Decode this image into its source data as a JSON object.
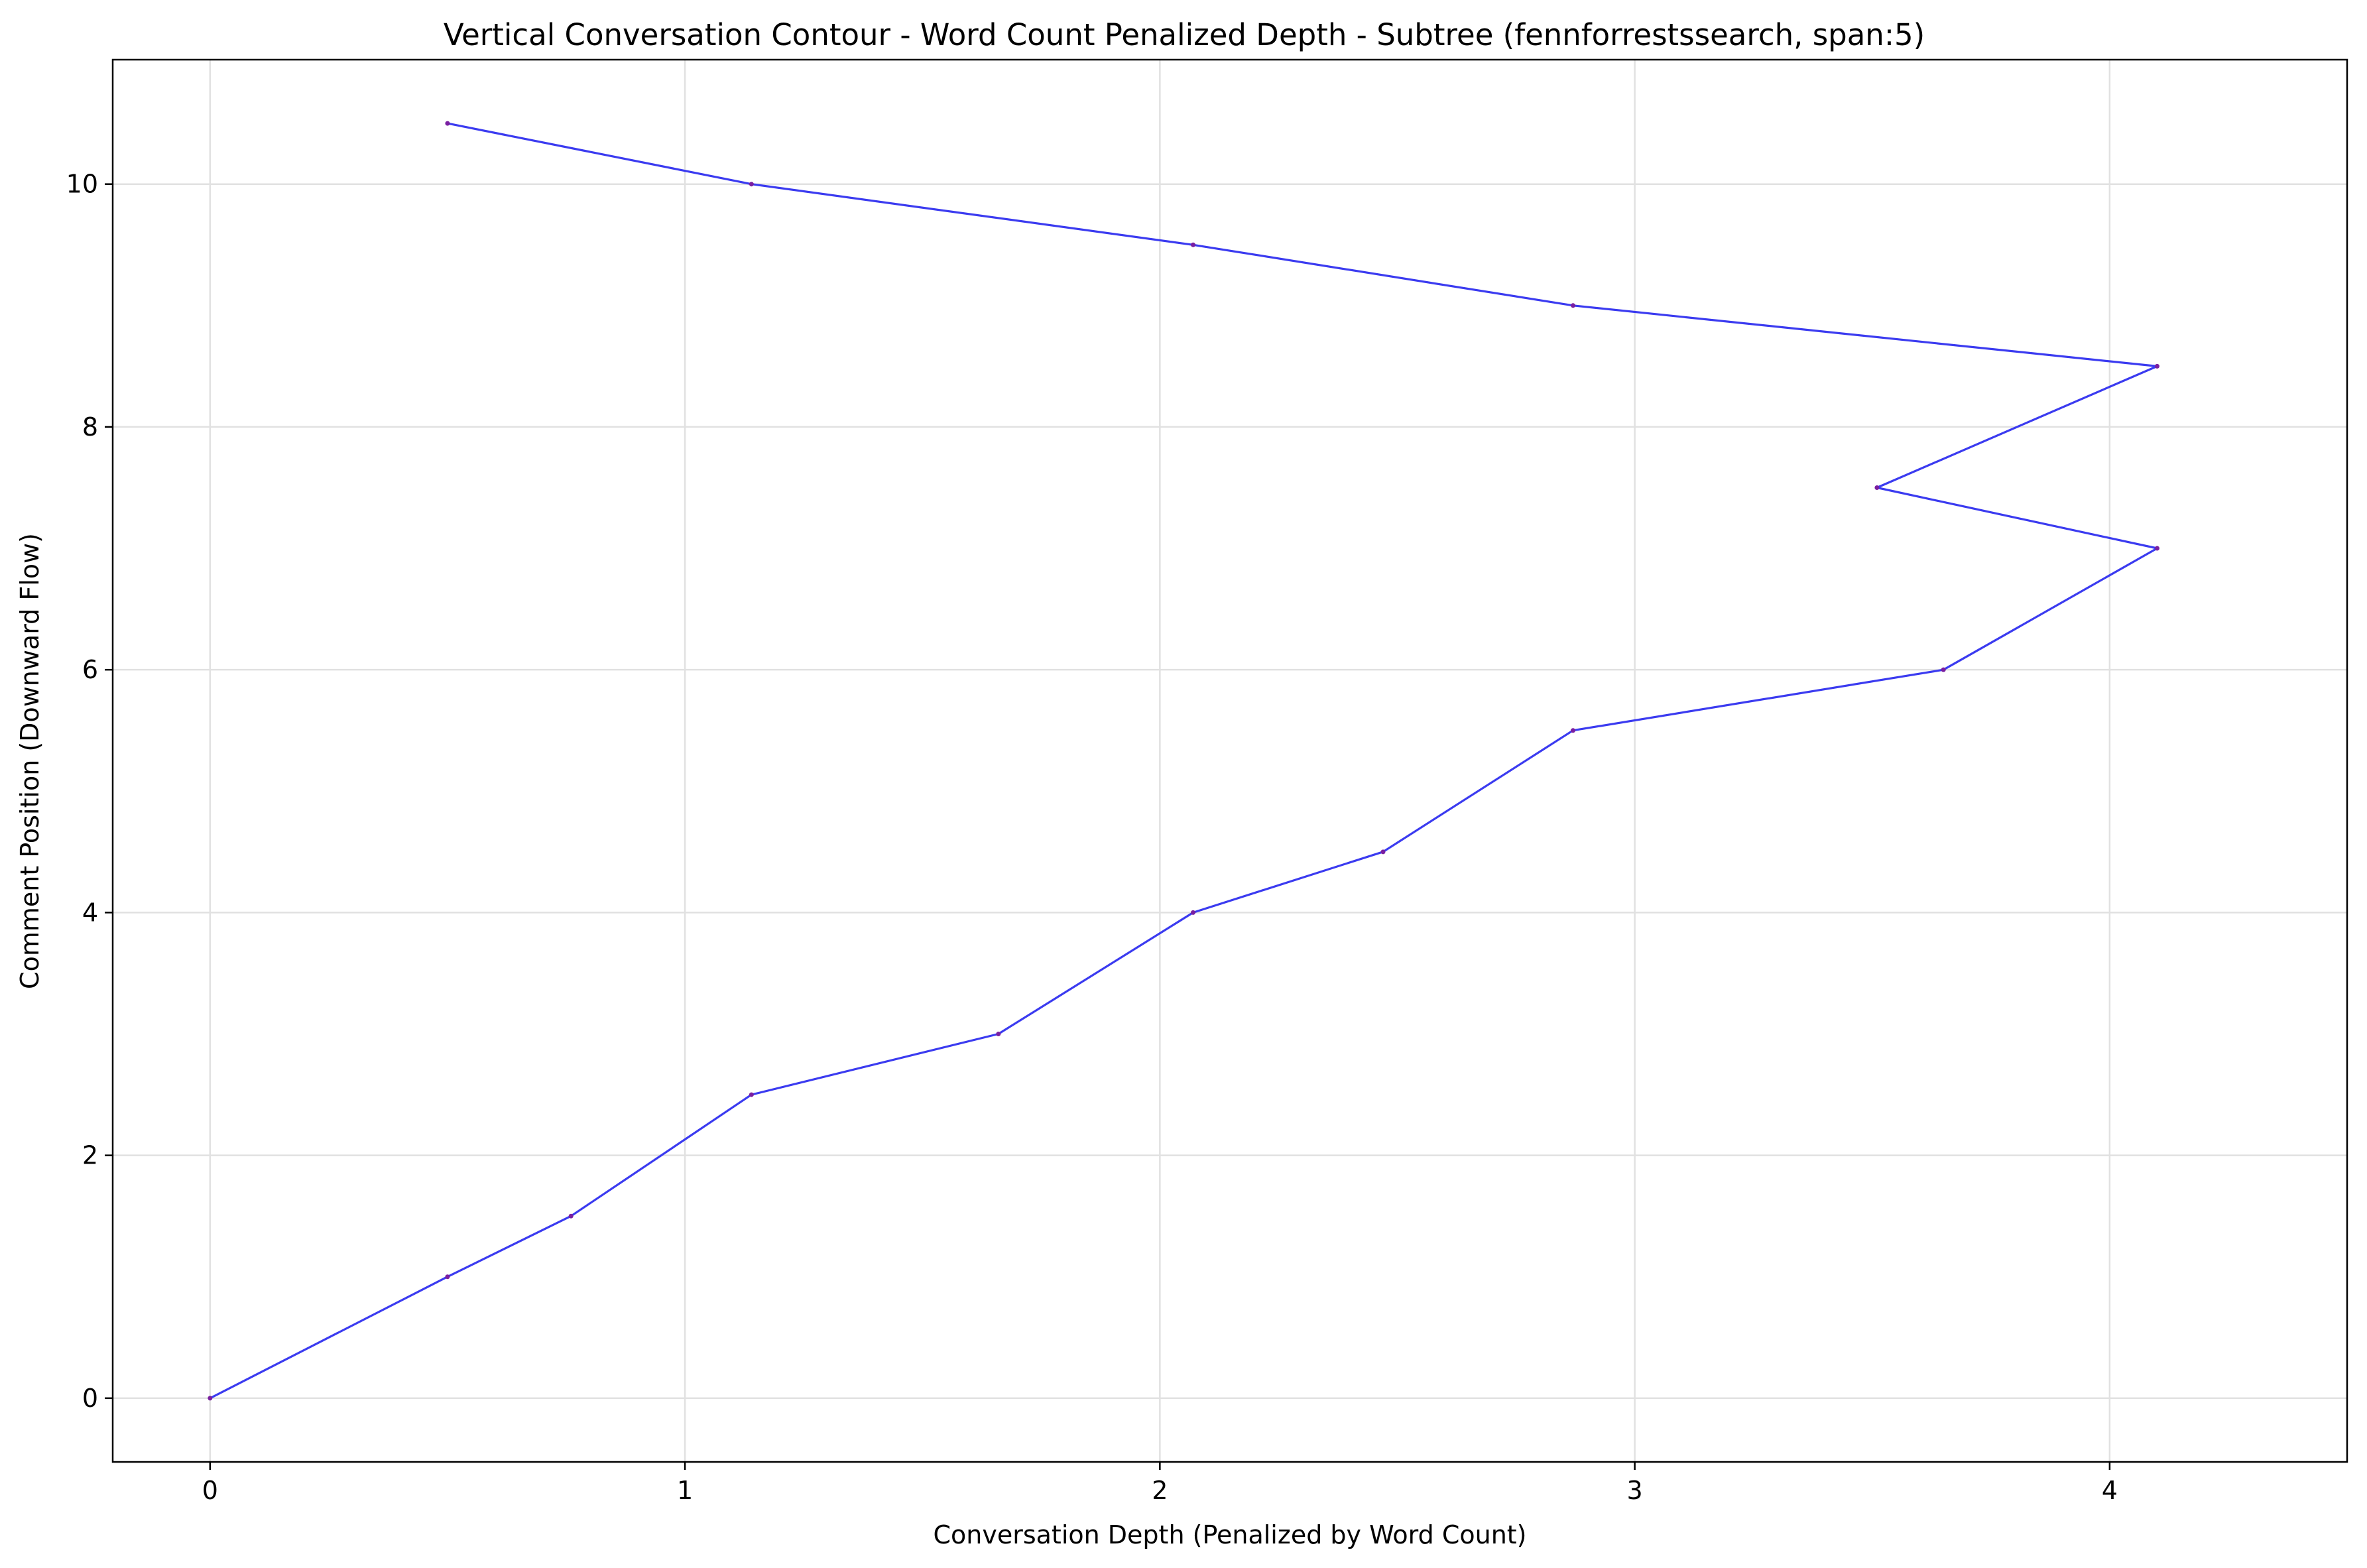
{
  "chart_data": {
    "type": "line",
    "title": "Vertical Conversation Contour - Word Count Penalized Depth - Subtree (fennforrestssearch, span:5)",
    "xlabel": "Conversation Depth (Penalized by Word Count)",
    "ylabel": "Comment Position (Downward Flow)",
    "xlim": [
      -0.205,
      4.5
    ],
    "ylim": [
      -0.525,
      11.025
    ],
    "xticks": [
      0,
      1,
      2,
      3,
      4
    ],
    "yticks": [
      0,
      2,
      4,
      6,
      8,
      10
    ],
    "grid": true,
    "legend": "none",
    "colors": {
      "line": "#3b3bf0",
      "marker": "#7a1fa0"
    },
    "series": [
      {
        "x": [
          0,
          0.5,
          0.76,
          1.14,
          1.66,
          2.07,
          2.47,
          2.87,
          3.65,
          4.1,
          3.51,
          4.1,
          2.87,
          2.07,
          1.14,
          0.5
        ],
        "y": [
          0,
          1,
          1.5,
          2.5,
          3,
          4,
          4.5,
          5.5,
          6,
          7,
          7.5,
          8.5,
          9,
          9.5,
          10,
          10.5
        ]
      }
    ]
  }
}
